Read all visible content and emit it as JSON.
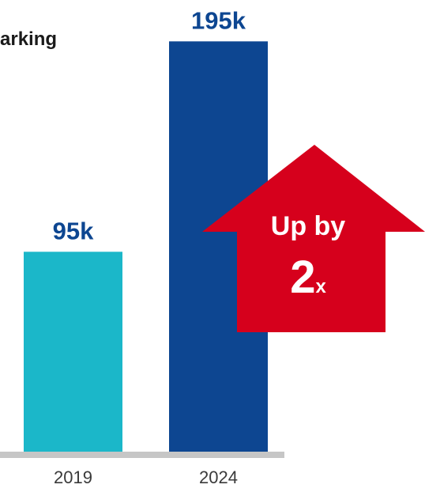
{
  "title_fragment": "arking",
  "chart_data": {
    "type": "bar",
    "categories": [
      "2019",
      "2024"
    ],
    "values": [
      95,
      195
    ],
    "value_labels": [
      "95k",
      "195k"
    ],
    "ylim": [
      0,
      200
    ],
    "grid": false,
    "bar_colors": [
      "#1bb7c9",
      "#0d4691"
    ],
    "annotation": {
      "text": "Up by",
      "multiplier": "2",
      "suffix": "x",
      "color": "#d6001c"
    }
  },
  "colors": {
    "label_text": "#0d4691",
    "axis_line": "#c6c6c6",
    "tick_text": "#3a3a3a"
  }
}
